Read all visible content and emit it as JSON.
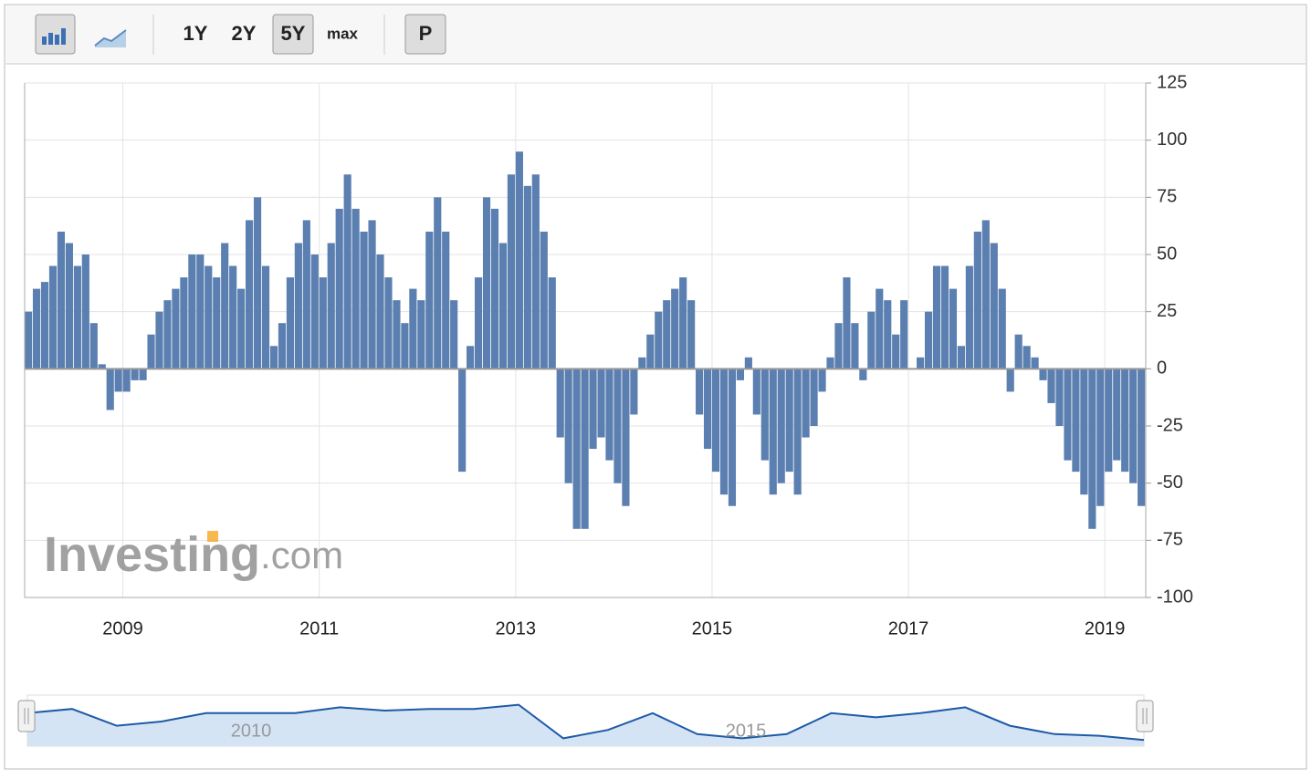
{
  "toolbar": {
    "ranges": [
      "1Y",
      "2Y",
      "5Y",
      "max"
    ],
    "price_button": "P"
  },
  "watermark": {
    "brand": "Investing",
    "suffix": ".com"
  },
  "chart_data": {
    "type": "bar",
    "categories": [
      null,
      null,
      null,
      null,
      null,
      null,
      null,
      null,
      null,
      null,
      null,
      null,
      "2009",
      null,
      null,
      null,
      null,
      null,
      null,
      null,
      null,
      null,
      null,
      null,
      null,
      null,
      null,
      null,
      null,
      null,
      null,
      null,
      null,
      null,
      null,
      null,
      "2011",
      null,
      null,
      null,
      null,
      null,
      null,
      null,
      null,
      null,
      null,
      null,
      null,
      null,
      null,
      null,
      null,
      null,
      null,
      null,
      null,
      null,
      null,
      null,
      "2013",
      null,
      null,
      null,
      null,
      null,
      null,
      null,
      null,
      null,
      null,
      null,
      null,
      null,
      null,
      null,
      null,
      null,
      null,
      null,
      null,
      null,
      null,
      null,
      "2015",
      null,
      null,
      null,
      null,
      null,
      null,
      null,
      null,
      null,
      null,
      null,
      null,
      null,
      null,
      null,
      null,
      null,
      null,
      null,
      null,
      null,
      null,
      null,
      "2017",
      null,
      null,
      null,
      null,
      null,
      null,
      null,
      null,
      null,
      null,
      null,
      null,
      null,
      null,
      null,
      null,
      null,
      null,
      null,
      null,
      null,
      null,
      null,
      "2019",
      null,
      null,
      null,
      null
    ],
    "values": [
      25,
      35,
      38,
      45,
      60,
      55,
      45,
      50,
      20,
      2,
      -18,
      -10,
      -10,
      -5,
      -5,
      15,
      25,
      30,
      35,
      40,
      50,
      50,
      45,
      40,
      55,
      45,
      35,
      65,
      75,
      45,
      10,
      20,
      40,
      55,
      65,
      50,
      40,
      55,
      70,
      85,
      70,
      60,
      65,
      50,
      40,
      30,
      20,
      35,
      30,
      60,
      75,
      60,
      30,
      -45,
      10,
      40,
      75,
      70,
      55,
      85,
      95,
      80,
      85,
      60,
      40,
      -30,
      -50,
      -70,
      -70,
      -35,
      -30,
      -40,
      -50,
      -60,
      -20,
      5,
      15,
      25,
      30,
      35,
      40,
      30,
      -20,
      -35,
      -45,
      -55,
      -60,
      -5,
      5,
      -20,
      -40,
      -55,
      -50,
      -45,
      -55,
      -30,
      -25,
      -10,
      5,
      20,
      40,
      20,
      -5,
      25,
      35,
      30,
      15,
      30,
      0,
      5,
      25,
      45,
      45,
      35,
      10,
      45,
      60,
      65,
      55,
      35,
      -10,
      15,
      10,
      5,
      -5,
      -15,
      -25,
      -40,
      -45,
      -55,
      -70,
      -60,
      -45,
      -40,
      -45,
      -50,
      -60
    ],
    "color": "#5b7fb0",
    "ylim": [
      -100,
      125
    ],
    "yticks": [
      -100,
      -75,
      -50,
      -25,
      0,
      25,
      50,
      75,
      100,
      125
    ],
    "grid": true
  },
  "navigator": {
    "labels": [
      "2010",
      "2015"
    ],
    "values": [
      35,
      40,
      20,
      25,
      35,
      35,
      35,
      42,
      38,
      40,
      40,
      45,
      5,
      15,
      35,
      10,
      5,
      10,
      35,
      30,
      35,
      42,
      20,
      10,
      8,
      3
    ],
    "ylim": [
      0,
      50
    ]
  }
}
